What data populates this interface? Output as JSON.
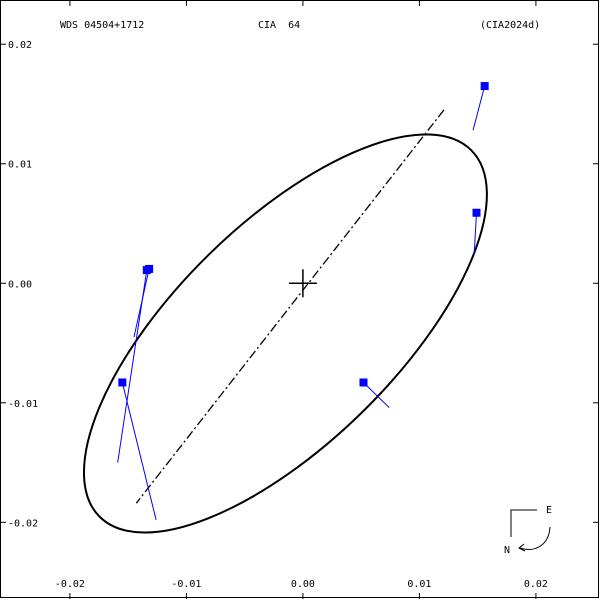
{
  "header": {
    "left": "WDS 04504+1712",
    "center": "CIA  64",
    "right": "(CIA2024d)"
  },
  "compass": {
    "east_label": "E",
    "north_label": "N"
  },
  "chart_data": {
    "type": "scatter",
    "title": "CIA  64",
    "xlabel": "",
    "ylabel": "",
    "xlim": [
      -0.026,
      0.0255
    ],
    "ylim": [
      -0.0265,
      0.0237
    ],
    "x_ticks": [
      -0.02,
      -0.01,
      0.0,
      0.01,
      0.02
    ],
    "x_tick_labels": [
      "-0.02",
      "-0.01",
      "0.00",
      "0.01",
      "0.02"
    ],
    "y_ticks": [
      0.02,
      0.01,
      0.0,
      -0.01,
      -0.02
    ],
    "y_tick_labels": [
      "0.02",
      "0.01",
      "0.00",
      "-0.01",
      "-0.02"
    ],
    "grid": false,
    "orbit": {
      "center": [
        -0.0015,
        -0.0042
      ],
      "semi_major": 0.0224,
      "semi_minor": 0.0092,
      "angle_deg": 44.5
    },
    "line_of_nodes": {
      "from": [
        0.0121,
        0.0145
      ],
      "to": [
        -0.0143,
        -0.0184
      ]
    },
    "origin": [
      0.0,
      0.0
    ],
    "series": [
      {
        "points": [
          {
            "x": 0.0156,
            "y": 0.0165,
            "ox": 0.0146,
            "oy": 0.0128
          },
          {
            "x": 0.0149,
            "y": 0.0059,
            "ox": 0.0147,
            "oy": 0.0024
          },
          {
            "x": 0.0052,
            "y": -0.0083,
            "ox": 0.0074,
            "oy": -0.0104
          },
          {
            "x": -0.0132,
            "y": 0.0012,
            "ox": -0.0145,
            "oy": -0.0045
          },
          {
            "x": -0.0134,
            "y": 0.0011,
            "ox": -0.0159,
            "oy": -0.015
          },
          {
            "x": -0.0155,
            "y": -0.0083,
            "ox": -0.0126,
            "oy": -0.0198
          }
        ]
      }
    ],
    "colors": {
      "points": "#0000ff",
      "residuals": "#0000ff",
      "orbit": "#000000"
    }
  }
}
